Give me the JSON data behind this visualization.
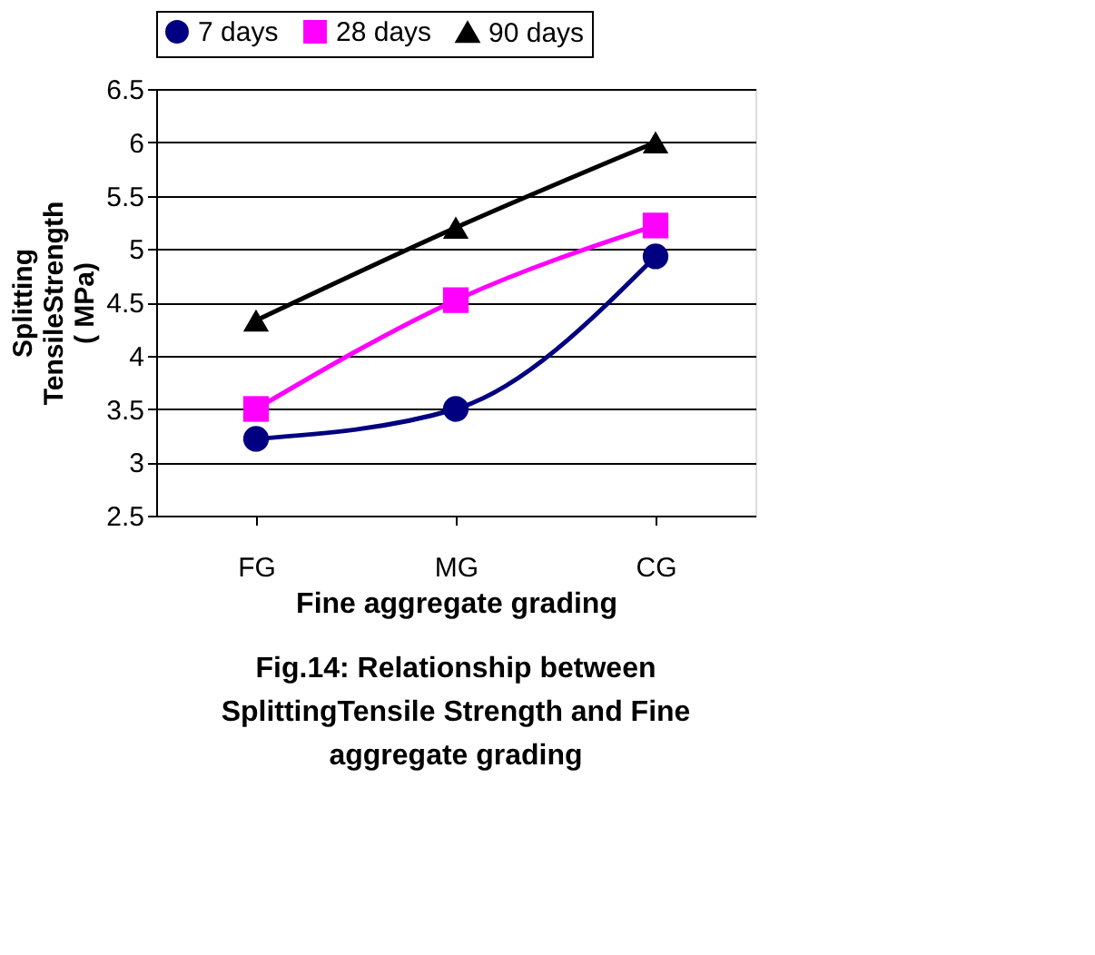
{
  "chart_data": {
    "type": "line",
    "title": "Fig.14: Relationship between SplittingTensile Strength and Fine aggregate grading",
    "xlabel": "Fine aggregate grading",
    "ylabel": "Splitting TensileStrength ( MPa)",
    "categories": [
      "FG",
      "MG",
      "CG"
    ],
    "series": [
      {
        "name": "7 days",
        "color": "#000080",
        "marker": "circle",
        "values": [
          3.22,
          3.5,
          4.93
        ]
      },
      {
        "name": "28 days",
        "color": "#ff00ff",
        "marker": "square",
        "values": [
          3.5,
          4.52,
          5.22
        ]
      },
      {
        "name": "90 days",
        "color": "#000000",
        "marker": "triangle",
        "values": [
          4.33,
          5.2,
          6.0
        ]
      }
    ],
    "ylim": [
      2.5,
      6.5
    ],
    "yticks": [
      2.5,
      3,
      3.5,
      4,
      4.5,
      5,
      5.5,
      6,
      6.5
    ],
    "grid": "y",
    "legend": "top",
    "line_style": "solid"
  }
}
